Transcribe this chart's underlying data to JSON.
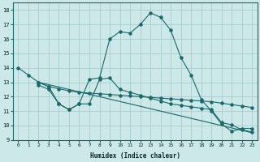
{
  "xlabel": "Humidex (Indice chaleur)",
  "bg_color": "#cce8e8",
  "grid_color": "#aacccc",
  "line_color": "#1a6868",
  "xlim": [
    -0.5,
    23.5
  ],
  "ylim": [
    9,
    18.5
  ],
  "xticks": [
    0,
    1,
    2,
    3,
    4,
    5,
    6,
    7,
    8,
    9,
    10,
    11,
    12,
    13,
    14,
    15,
    16,
    17,
    18,
    19,
    20,
    21,
    22,
    23
  ],
  "yticks": [
    9,
    10,
    11,
    12,
    13,
    14,
    15,
    16,
    17,
    18
  ],
  "line1_x": [
    0,
    1,
    2,
    3,
    4,
    5,
    6,
    7,
    8,
    9,
    10,
    11,
    12,
    13,
    14,
    15,
    16,
    17,
    18,
    19,
    20,
    21,
    22,
    23
  ],
  "line1_y": [
    14,
    13.5,
    13,
    12.7,
    11.5,
    11.1,
    11.5,
    13.2,
    13.3,
    16.0,
    16.5,
    16.4,
    17.0,
    17.8,
    17.5,
    16.6,
    14.7,
    13.5,
    11.8,
    11.0,
    10.1,
    9.6,
    9.8,
    9.8
  ],
  "line2_x": [
    2,
    3,
    4,
    5,
    6,
    7,
    8,
    9,
    10,
    11,
    12,
    13,
    14,
    15,
    16,
    17,
    18,
    19,
    20,
    21,
    22,
    23
  ],
  "line2_y": [
    13.0,
    12.7,
    12.55,
    12.4,
    12.3,
    12.25,
    12.2,
    12.15,
    12.1,
    12.05,
    12.0,
    11.95,
    11.9,
    11.85,
    11.8,
    11.75,
    11.7,
    11.65,
    11.55,
    11.45,
    11.35,
    11.25
  ],
  "line3_x": [
    2,
    3,
    4,
    5,
    6,
    7,
    8,
    9,
    10,
    11,
    12,
    13,
    14,
    15,
    16,
    17,
    18,
    19,
    20,
    21,
    22,
    23
  ],
  "line3_y": [
    12.8,
    12.5,
    11.5,
    11.1,
    11.5,
    11.5,
    13.2,
    13.3,
    12.5,
    12.3,
    12.1,
    11.9,
    11.7,
    11.5,
    11.4,
    11.3,
    11.2,
    11.1,
    10.2,
    10.05,
    9.7,
    9.55
  ],
  "line4_x": [
    2,
    23
  ],
  "line4_y": [
    13.0,
    9.5
  ]
}
